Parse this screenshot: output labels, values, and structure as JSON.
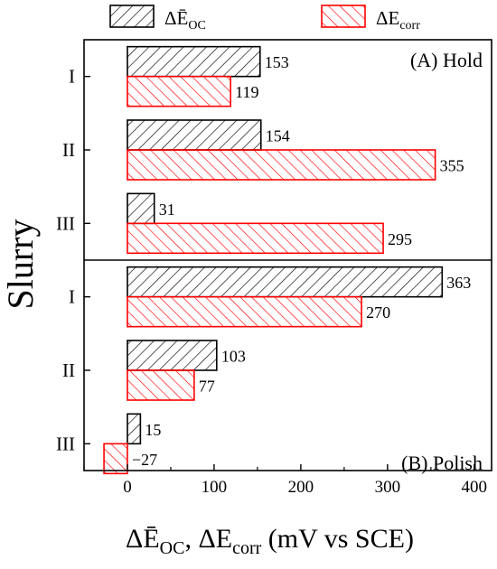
{
  "chart_data": {
    "type": "bar",
    "orientation": "horizontal",
    "legend": {
      "placement": "top",
      "entries": [
        {
          "key": "eoc",
          "label_main": "ΔĒ",
          "label_sub": "OC",
          "color": "#000000"
        },
        {
          "key": "ecorr",
          "label_main": "ΔE",
          "label_sub": "corr",
          "color": "#ff0000"
        }
      ]
    },
    "ylabel": "Slurry",
    "xlabel": {
      "part1_main": "ΔĒ",
      "part1_sub": "OC",
      "sep": ", ",
      "part2_main": "ΔE",
      "part2_sub": "corr",
      "units": " (mV vs SCE)"
    },
    "xlim": [
      -50,
      420
    ],
    "xticks": [
      0,
      100,
      200,
      300,
      400
    ],
    "grid": false,
    "panels": [
      {
        "label": "(A) Hold",
        "label_position": "top-right",
        "categories": [
          "I",
          "II",
          "III"
        ],
        "series": [
          {
            "key": "eoc",
            "values": [
              153,
              154,
              31
            ],
            "labels": [
              "153",
              "154",
              "31"
            ]
          },
          {
            "key": "ecorr",
            "values": [
              119,
              355,
              295
            ],
            "labels": [
              "119",
              "355",
              "295"
            ]
          }
        ]
      },
      {
        "label": "(B) Polish",
        "label_position": "bottom-right",
        "categories": [
          "I",
          "II",
          "III"
        ],
        "series": [
          {
            "key": "eoc",
            "values": [
              363,
              103,
              15
            ],
            "labels": [
              "363",
              "103",
              "15"
            ]
          },
          {
            "key": "ecorr",
            "values": [
              270,
              77,
              -27
            ],
            "labels": [
              "270",
              "77",
              "−27"
            ]
          }
        ]
      }
    ]
  }
}
